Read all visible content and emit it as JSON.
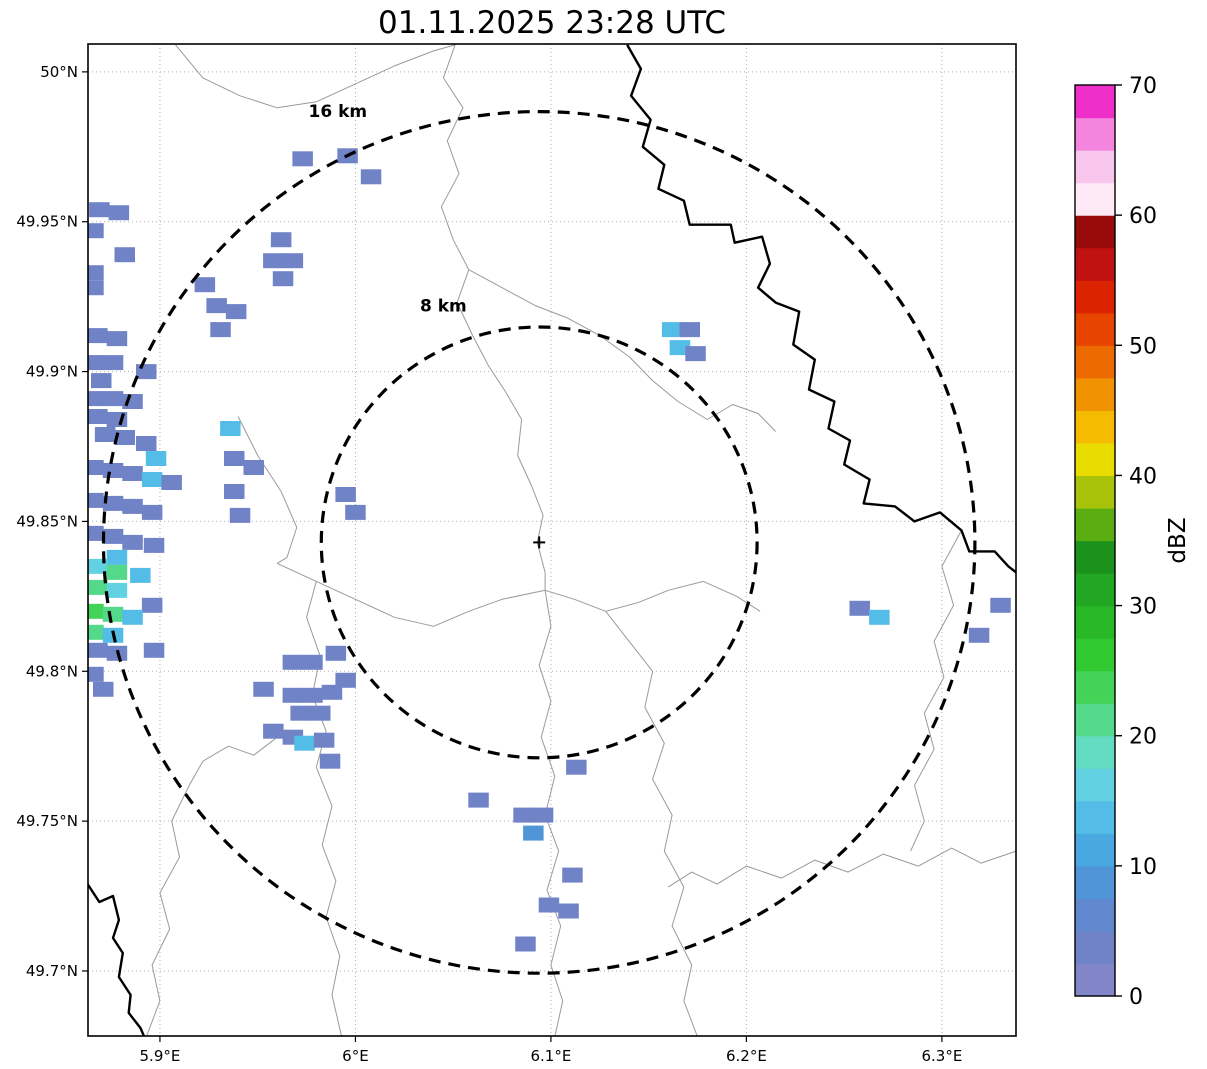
{
  "title": "01.11.2025 23:28 UTC",
  "chart_data": {
    "type": "heatmap",
    "title": "01.11.2025 23:28 UTC",
    "xlabel": "",
    "ylabel": "",
    "xlim": [
      5.8632,
      6.3379
    ],
    "ylim": [
      49.6783,
      50.0093
    ],
    "grid": true,
    "x_ticks": [
      {
        "v": 5.9,
        "label": "5.9°E"
      },
      {
        "v": 6.0,
        "label": "6°E"
      },
      {
        "v": 6.1,
        "label": "6.1°E"
      },
      {
        "v": 6.2,
        "label": "6.2°E"
      },
      {
        "v": 6.3,
        "label": "6.3°E"
      }
    ],
    "y_ticks": [
      {
        "v": 50.0,
        "label": "50°N"
      },
      {
        "v": 49.95,
        "label": "49.95°N"
      },
      {
        "v": 49.9,
        "label": "49.9°N"
      },
      {
        "v": 49.85,
        "label": "49.85°N"
      },
      {
        "v": 49.8,
        "label": "49.8°N"
      },
      {
        "v": 49.75,
        "label": "49.75°N"
      },
      {
        "v": 49.7,
        "label": "49.7°N"
      }
    ],
    "radar_center": {
      "lon": 6.094,
      "lat": 49.843,
      "marker": "+"
    },
    "range_rings": [
      {
        "radius_km": 8,
        "label": "8 km",
        "label_lon": 6.045,
        "label_lat": 49.922
      },
      {
        "radius_km": 16,
        "label": "16 km",
        "label_lon": 5.991,
        "label_lat": 49.987
      }
    ],
    "cell_size": {
      "dlon": 0.0105,
      "dlat": 0.005
    },
    "cells": [
      [
        5.869,
        49.954,
        3
      ],
      [
        5.879,
        49.953,
        3
      ],
      [
        5.866,
        49.947,
        3
      ],
      [
        5.882,
        49.939,
        3
      ],
      [
        5.866,
        49.933,
        3
      ],
      [
        5.866,
        49.928,
        3
      ],
      [
        5.973,
        49.971,
        3
      ],
      [
        5.996,
        49.972,
        3
      ],
      [
        6.008,
        49.965,
        3
      ],
      [
        5.962,
        49.944,
        3
      ],
      [
        5.958,
        49.937,
        3
      ],
      [
        5.968,
        49.937,
        3
      ],
      [
        5.963,
        49.931,
        3
      ],
      [
        5.923,
        49.929,
        3
      ],
      [
        5.929,
        49.922,
        3
      ],
      [
        5.939,
        49.92,
        3
      ],
      [
        5.931,
        49.914,
        3
      ],
      [
        5.868,
        49.912,
        3
      ],
      [
        5.878,
        49.911,
        3
      ],
      [
        5.866,
        49.903,
        3
      ],
      [
        5.876,
        49.903,
        3
      ],
      [
        5.87,
        49.897,
        3
      ],
      [
        5.893,
        49.9,
        3
      ],
      [
        5.866,
        49.891,
        3
      ],
      [
        5.876,
        49.891,
        3
      ],
      [
        5.886,
        49.89,
        3
      ],
      [
        5.868,
        49.885,
        3
      ],
      [
        5.878,
        49.884,
        3
      ],
      [
        5.872,
        49.879,
        3
      ],
      [
        5.882,
        49.878,
        3
      ],
      [
        5.893,
        49.876,
        3
      ],
      [
        5.898,
        49.871,
        13
      ],
      [
        5.936,
        49.881,
        13
      ],
      [
        5.866,
        49.868,
        3
      ],
      [
        5.876,
        49.867,
        3
      ],
      [
        5.886,
        49.866,
        3
      ],
      [
        5.896,
        49.864,
        13
      ],
      [
        5.906,
        49.863,
        3
      ],
      [
        5.938,
        49.871,
        3
      ],
      [
        5.948,
        49.868,
        3
      ],
      [
        5.866,
        49.857,
        3
      ],
      [
        5.876,
        49.856,
        3
      ],
      [
        5.886,
        49.855,
        3
      ],
      [
        5.896,
        49.853,
        3
      ],
      [
        5.938,
        49.86,
        3
      ],
      [
        5.941,
        49.852,
        3
      ],
      [
        5.866,
        49.846,
        3
      ],
      [
        5.876,
        49.845,
        3
      ],
      [
        5.886,
        49.843,
        3
      ],
      [
        5.897,
        49.842,
        3
      ],
      [
        5.878,
        49.838,
        13
      ],
      [
        5.868,
        49.835,
        16
      ],
      [
        5.878,
        49.833,
        21
      ],
      [
        5.89,
        49.832,
        13
      ],
      [
        5.868,
        49.828,
        21
      ],
      [
        5.878,
        49.827,
        16
      ],
      [
        5.896,
        49.822,
        3
      ],
      [
        5.866,
        49.82,
        24
      ],
      [
        5.876,
        49.819,
        21
      ],
      [
        5.886,
        49.818,
        13
      ],
      [
        5.866,
        49.813,
        21
      ],
      [
        5.876,
        49.812,
        13
      ],
      [
        5.868,
        49.807,
        3
      ],
      [
        5.878,
        49.806,
        3
      ],
      [
        5.897,
        49.807,
        3
      ],
      [
        5.866,
        49.799,
        3
      ],
      [
        5.871,
        49.794,
        3
      ],
      [
        5.995,
        49.859,
        3
      ],
      [
        6.0,
        49.853,
        3
      ],
      [
        6.162,
        49.914,
        13
      ],
      [
        6.171,
        49.914,
        3
      ],
      [
        6.166,
        49.908,
        13
      ],
      [
        6.174,
        49.906,
        3
      ],
      [
        5.968,
        49.803,
        3
      ],
      [
        5.978,
        49.803,
        3
      ],
      [
        5.99,
        49.806,
        3
      ],
      [
        5.953,
        49.794,
        3
      ],
      [
        5.968,
        49.792,
        3
      ],
      [
        5.978,
        49.792,
        3
      ],
      [
        5.988,
        49.793,
        3
      ],
      [
        5.995,
        49.797,
        3
      ],
      [
        5.972,
        49.786,
        3
      ],
      [
        5.982,
        49.786,
        3
      ],
      [
        5.958,
        49.78,
        3
      ],
      [
        5.968,
        49.778,
        3
      ],
      [
        5.974,
        49.776,
        13
      ],
      [
        5.984,
        49.777,
        3
      ],
      [
        5.987,
        49.77,
        3
      ],
      [
        6.113,
        49.768,
        3
      ],
      [
        6.063,
        49.757,
        3
      ],
      [
        6.086,
        49.752,
        3
      ],
      [
        6.096,
        49.752,
        3
      ],
      [
        6.091,
        49.746,
        8
      ],
      [
        6.111,
        49.732,
        3
      ],
      [
        6.099,
        49.722,
        3
      ],
      [
        6.109,
        49.72,
        3
      ],
      [
        6.087,
        49.709,
        3
      ],
      [
        6.258,
        49.821,
        3
      ],
      [
        6.268,
        49.818,
        13
      ],
      [
        6.33,
        49.822,
        3
      ],
      [
        6.319,
        49.812,
        3
      ]
    ],
    "colorbar": {
      "label": "dBZ",
      "min": 0,
      "max": 70,
      "step": 2.5,
      "ticks": [
        0,
        10,
        20,
        30,
        40,
        50,
        60,
        70
      ],
      "colors": [
        "#8186c9",
        "#7183c7",
        "#5f88ce",
        "#4f95d7",
        "#48a8df",
        "#54bde7",
        "#62d1e2",
        "#63dcc1",
        "#54d98b",
        "#43d356",
        "#30c930",
        "#28b828",
        "#22a722",
        "#1b921b",
        "#5aae12",
        "#a9c30b",
        "#e8dc00",
        "#f5bb00",
        "#f19200",
        "#ed6a00",
        "#e74400",
        "#dc2300",
        "#c11212",
        "#990b0b",
        "#fdeaf6",
        "#f9c6ee",
        "#f385de",
        "#ef2fc9"
      ]
    }
  },
  "map_layers": {
    "rivers": [
      [
        [
          6.139,
          50.009
        ],
        [
          6.146,
          50.001
        ],
        [
          6.141,
          49.992
        ],
        [
          6.151,
          49.984
        ],
        [
          6.147,
          49.975
        ],
        [
          6.158,
          49.969
        ],
        [
          6.155,
          49.961
        ],
        [
          6.168,
          49.957
        ],
        [
          6.171,
          49.949
        ],
        [
          6.192,
          49.949
        ],
        [
          6.194,
          49.943
        ],
        [
          6.208,
          49.945
        ],
        [
          6.212,
          49.936
        ],
        [
          6.206,
          49.928
        ],
        [
          6.215,
          49.923
        ],
        [
          6.227,
          49.92
        ],
        [
          6.224,
          49.909
        ],
        [
          6.235,
          49.904
        ],
        [
          6.232,
          49.894
        ],
        [
          6.245,
          49.89
        ],
        [
          6.242,
          49.881
        ],
        [
          6.253,
          49.877
        ],
        [
          6.25,
          49.869
        ],
        [
          6.263,
          49.864
        ],
        [
          6.26,
          49.856
        ],
        [
          6.276,
          49.855
        ],
        [
          6.286,
          49.85
        ],
        [
          6.299,
          49.853
        ],
        [
          6.31,
          49.847
        ],
        [
          6.314,
          49.84
        ],
        [
          6.327,
          49.84
        ],
        [
          6.334,
          49.835
        ],
        [
          6.338,
          49.833
        ]
      ],
      [
        [
          5.863,
          49.729
        ],
        [
          5.869,
          49.723
        ],
        [
          5.876,
          49.725
        ],
        [
          5.879,
          49.717
        ],
        [
          5.876,
          49.711
        ],
        [
          5.881,
          49.706
        ],
        [
          5.879,
          49.698
        ],
        [
          5.885,
          49.692
        ],
        [
          5.884,
          49.686
        ],
        [
          5.89,
          49.681
        ],
        [
          5.892,
          49.678
        ]
      ]
    ],
    "boundaries": [
      [
        [
          5.908,
          50.009
        ],
        [
          5.922,
          49.998
        ],
        [
          5.941,
          49.992
        ],
        [
          5.96,
          49.988
        ],
        [
          5.98,
          49.99
        ],
        [
          6.0,
          49.996
        ],
        [
          6.02,
          50.002
        ],
        [
          6.04,
          50.007
        ],
        [
          6.051,
          50.009
        ]
      ],
      [
        [
          6.051,
          50.009
        ],
        [
          6.045,
          49.998
        ],
        [
          6.055,
          49.988
        ],
        [
          6.047,
          49.977
        ],
        [
          6.053,
          49.966
        ],
        [
          6.044,
          49.955
        ],
        [
          6.05,
          49.944
        ],
        [
          6.058,
          49.934
        ],
        [
          6.052,
          49.923
        ],
        [
          6.06,
          49.912
        ],
        [
          6.068,
          49.902
        ],
        [
          6.077,
          49.893
        ],
        [
          6.085,
          49.884
        ],
        [
          6.083,
          49.872
        ],
        [
          6.09,
          49.862
        ],
        [
          6.096,
          49.852
        ],
        [
          6.093,
          49.843
        ],
        [
          6.097,
          49.833
        ],
        [
          6.097,
          49.827
        ]
      ],
      [
        [
          6.058,
          49.934
        ],
        [
          6.075,
          49.928
        ],
        [
          6.092,
          49.922
        ],
        [
          6.108,
          49.918
        ],
        [
          6.125,
          49.912
        ],
        [
          6.14,
          49.905
        ],
        [
          6.152,
          49.897
        ],
        [
          6.165,
          49.89
        ],
        [
          6.18,
          49.884
        ],
        [
          6.193,
          49.889
        ],
        [
          6.206,
          49.886
        ],
        [
          6.215,
          49.88
        ]
      ],
      [
        [
          5.96,
          49.836
        ],
        [
          5.98,
          49.83
        ],
        [
          6.0,
          49.824
        ],
        [
          6.02,
          49.818
        ],
        [
          6.04,
          49.815
        ],
        [
          6.058,
          49.82
        ],
        [
          6.075,
          49.824
        ],
        [
          6.097,
          49.827
        ],
        [
          6.112,
          49.824
        ],
        [
          6.128,
          49.82
        ],
        [
          6.145,
          49.823
        ],
        [
          6.16,
          49.827
        ],
        [
          6.178,
          49.83
        ],
        [
          6.195,
          49.825
        ],
        [
          6.207,
          49.82
        ]
      ],
      [
        [
          5.94,
          49.885
        ],
        [
          5.95,
          49.872
        ],
        [
          5.962,
          49.86
        ],
        [
          5.97,
          49.848
        ],
        [
          5.965,
          49.838
        ],
        [
          5.96,
          49.836
        ]
      ],
      [
        [
          5.98,
          49.83
        ],
        [
          5.975,
          49.818
        ],
        [
          5.982,
          49.805
        ],
        [
          5.978,
          49.792
        ],
        [
          5.985,
          49.78
        ],
        [
          5.98,
          49.768
        ],
        [
          5.988,
          49.755
        ],
        [
          5.983,
          49.742
        ],
        [
          5.99,
          49.73
        ],
        [
          5.985,
          49.718
        ],
        [
          5.992,
          49.705
        ],
        [
          5.988,
          49.692
        ],
        [
          5.993,
          49.678
        ]
      ],
      [
        [
          6.097,
          49.827
        ],
        [
          6.1,
          49.815
        ],
        [
          6.094,
          49.802
        ],
        [
          6.1,
          49.79
        ],
        [
          6.095,
          49.778
        ],
        [
          6.102,
          49.765
        ],
        [
          6.097,
          49.752
        ],
        [
          6.104,
          49.74
        ],
        [
          6.098,
          49.727
        ],
        [
          6.105,
          49.715
        ],
        [
          6.1,
          49.702
        ],
        [
          6.106,
          49.69
        ],
        [
          6.102,
          49.678
        ]
      ],
      [
        [
          6.128,
          49.82
        ],
        [
          6.14,
          49.81
        ],
        [
          6.152,
          49.8
        ],
        [
          6.148,
          49.788
        ],
        [
          6.158,
          49.776
        ],
        [
          6.152,
          49.764
        ],
        [
          6.162,
          49.752
        ],
        [
          6.158,
          49.74
        ],
        [
          6.168,
          49.728
        ],
        [
          6.162,
          49.715
        ],
        [
          6.172,
          49.702
        ],
        [
          6.168,
          49.69
        ],
        [
          6.175,
          49.678
        ]
      ],
      [
        [
          6.338,
          49.74
        ],
        [
          6.32,
          49.736
        ],
        [
          6.305,
          49.741
        ],
        [
          6.288,
          49.735
        ],
        [
          6.27,
          49.739
        ],
        [
          6.252,
          49.733
        ],
        [
          6.235,
          49.737
        ],
        [
          6.218,
          49.731
        ],
        [
          6.2,
          49.735
        ],
        [
          6.185,
          49.729
        ],
        [
          6.172,
          49.733
        ],
        [
          6.16,
          49.728
        ]
      ],
      [
        [
          6.31,
          49.847
        ],
        [
          6.3,
          49.835
        ],
        [
          6.306,
          49.822
        ],
        [
          6.296,
          49.81
        ],
        [
          6.301,
          49.798
        ],
        [
          6.291,
          49.786
        ],
        [
          6.296,
          49.774
        ],
        [
          6.286,
          49.762
        ],
        [
          6.291,
          49.75
        ],
        [
          6.284,
          49.74
        ]
      ],
      [
        [
          5.893,
          49.678
        ],
        [
          5.9,
          49.69
        ],
        [
          5.896,
          49.702
        ],
        [
          5.905,
          49.714
        ],
        [
          5.9,
          49.726
        ],
        [
          5.91,
          49.738
        ],
        [
          5.906,
          49.75
        ],
        [
          5.915,
          49.762
        ],
        [
          5.922,
          49.77
        ],
        [
          5.935,
          49.775
        ],
        [
          5.948,
          49.772
        ],
        [
          5.96,
          49.778
        ],
        [
          5.968,
          49.778
        ]
      ]
    ]
  },
  "style": {
    "bg": "#ffffff",
    "grid_color": "#b0b0b0",
    "boundary_color": "#9a9a9a",
    "river_color": "#000000",
    "ring_color": "#000000",
    "frame_color": "#000000"
  }
}
